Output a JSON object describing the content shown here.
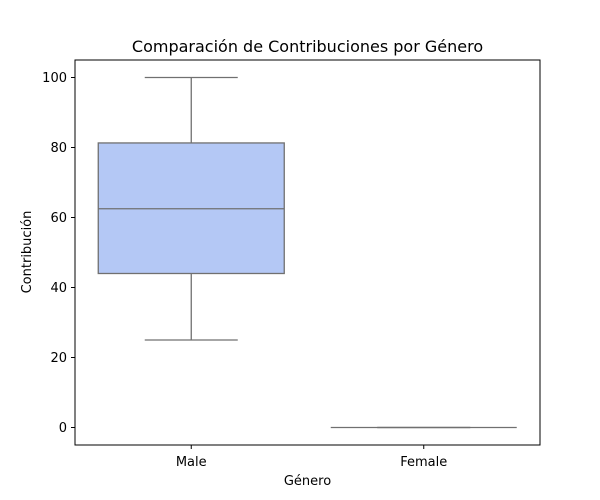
{
  "chart_data": {
    "type": "box",
    "title": "Comparación de Contribuciones por Género",
    "xlabel": "Género",
    "ylabel": "Contribución",
    "categories": [
      "Male",
      "Female"
    ],
    "ylim": [
      -5,
      105
    ],
    "yticks": [
      0,
      20,
      40,
      60,
      80,
      100
    ],
    "boxes": [
      {
        "category": "Male",
        "min": 25,
        "q1": 44,
        "median": 62.5,
        "q3": 81.3,
        "max": 100
      },
      {
        "category": "Female",
        "min": 0,
        "q1": 0,
        "median": 0,
        "q3": 0,
        "max": 0
      }
    ],
    "box_color": "#b4c8f5",
    "line_color": "#707070",
    "grid": false
  }
}
